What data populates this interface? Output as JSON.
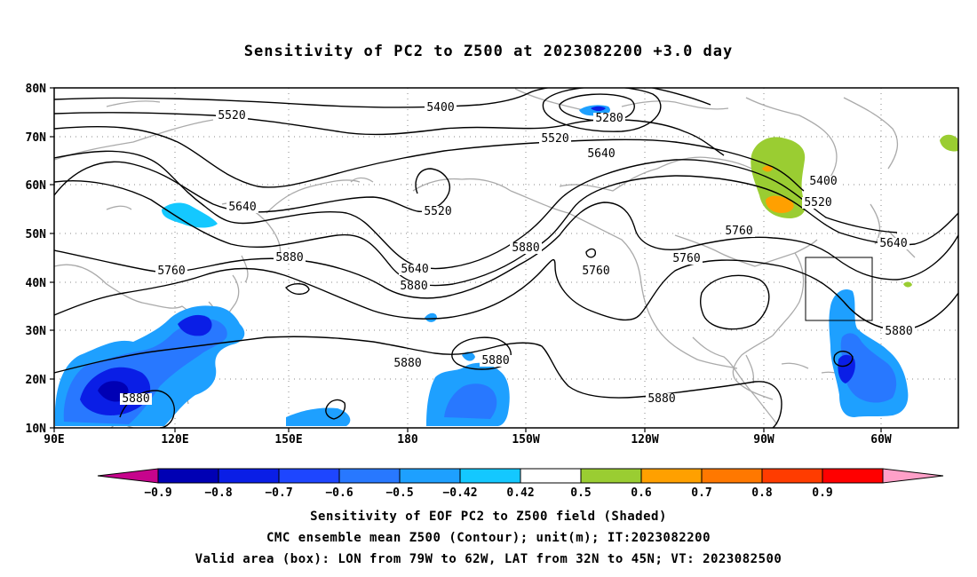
{
  "title": "Sensitivity of PC2 to Z500 at 2023082200 +3.0 day",
  "lat_labels": [
    "80N",
    "70N",
    "60N",
    "50N",
    "40N",
    "30N",
    "20N",
    "10N"
  ],
  "lon_labels": [
    "90E",
    "120E",
    "150E",
    "180",
    "150W",
    "120W",
    "90W",
    "60W"
  ],
  "contour_labels": [
    "5520",
    "5400",
    "5280",
    "5520",
    "5640",
    "5400",
    "5520",
    "5640",
    "5520",
    "5760",
    "5640",
    "5760",
    "5640",
    "5880",
    "5880",
    "5880",
    "5760",
    "5760",
    "5880",
    "5880",
    "5880",
    "5880",
    "5880"
  ],
  "colorbar_labels": [
    "−0.9",
    "−0.8",
    "−0.7",
    "−0.6",
    "−0.5",
    "−0.42",
    "0.42",
    "0.5",
    "0.6",
    "0.7",
    "0.8",
    "0.9"
  ],
  "colors": {
    "neg_tri": "#c6048c",
    "levels": [
      "#0000b4",
      "#0a1ee6",
      "#1e46ff",
      "#2878ff",
      "#1ea0ff",
      "#14c8ff",
      "#ffffff",
      "#9acd32",
      "#ffa000",
      "#ff7800",
      "#ff3c00",
      "#ff0000"
    ],
    "pos_tri": "#ffa0c8",
    "land_outline": "#aaaaaa",
    "contour": "#000000"
  },
  "captions": [
    "Sensitivity of EOF PC2 to Z500 field (Shaded)",
    "CMC ensemble mean Z500 (Contour); unit(m); IT:2023082200",
    "Valid area (box): LON from 79W to 62W, LAT from 32N to 45N; VT: 2023082500"
  ]
}
